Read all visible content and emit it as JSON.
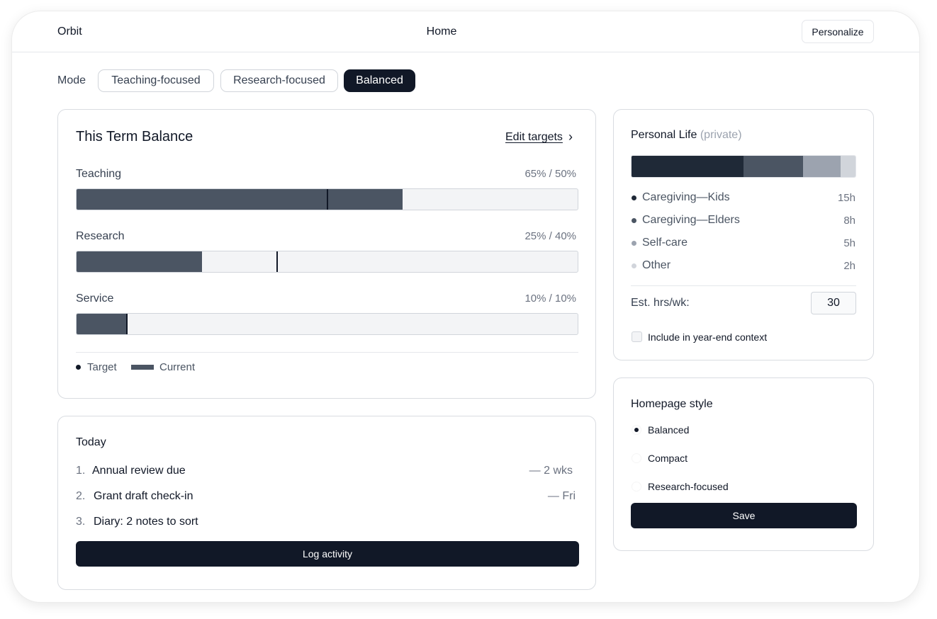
{
  "header": {
    "brand": "Orbit",
    "title": "Home",
    "personalize_label": "Personalize"
  },
  "mode": {
    "label": "Mode",
    "options": [
      "Teaching-focused",
      "Research-focused",
      "Balanced"
    ],
    "selected": "Balanced"
  },
  "balance": {
    "title": "This Term Balance",
    "edit_label": "Edit targets",
    "chevron": "›",
    "metrics": [
      {
        "name": "Teaching",
        "current": 65,
        "target": 50,
        "display": "65% / 50%"
      },
      {
        "name": "Research",
        "current": 25,
        "target": 40,
        "display": "25% / 40%"
      },
      {
        "name": "Service",
        "current": 10,
        "target": 10,
        "display": "10% / 10%"
      }
    ],
    "legend": {
      "target": "Target",
      "current": "Current"
    },
    "colors": {
      "current": "#4b5563",
      "target": "#111827",
      "track": "#f3f4f6"
    }
  },
  "today": {
    "title": "Today",
    "items": [
      {
        "num": "1.",
        "text": "Annual review due",
        "due": "— 2 wks"
      },
      {
        "num": "2.",
        "text": "Grant draft check-in",
        "due": "— Fri"
      },
      {
        "num": "3.",
        "text": "Diary: 2 notes to sort",
        "due": ""
      }
    ],
    "button_label": "Log activity"
  },
  "personal": {
    "title": "Personal Life",
    "private_label": "(private)",
    "categories": [
      {
        "name": "Caregiving—Kids",
        "hours": 15,
        "display": "15h",
        "color": "#1f2937"
      },
      {
        "name": "Caregiving—Elders",
        "hours": 8,
        "display": "8h",
        "color": "#4b5563"
      },
      {
        "name": "Self-care",
        "hours": 5,
        "display": "5h",
        "color": "#9ca3af"
      },
      {
        "name": "Other",
        "hours": 2,
        "display": "2h",
        "color": "#d1d5db"
      }
    ],
    "est_label": "Est. hrs/wk:",
    "est_value": "30",
    "include_label": "Include in year-end context",
    "include_checked": false
  },
  "homepage_style": {
    "title": "Homepage style",
    "options": [
      "Balanced",
      "Compact",
      "Research-focused"
    ],
    "selected": "Balanced",
    "save_label": "Save"
  }
}
